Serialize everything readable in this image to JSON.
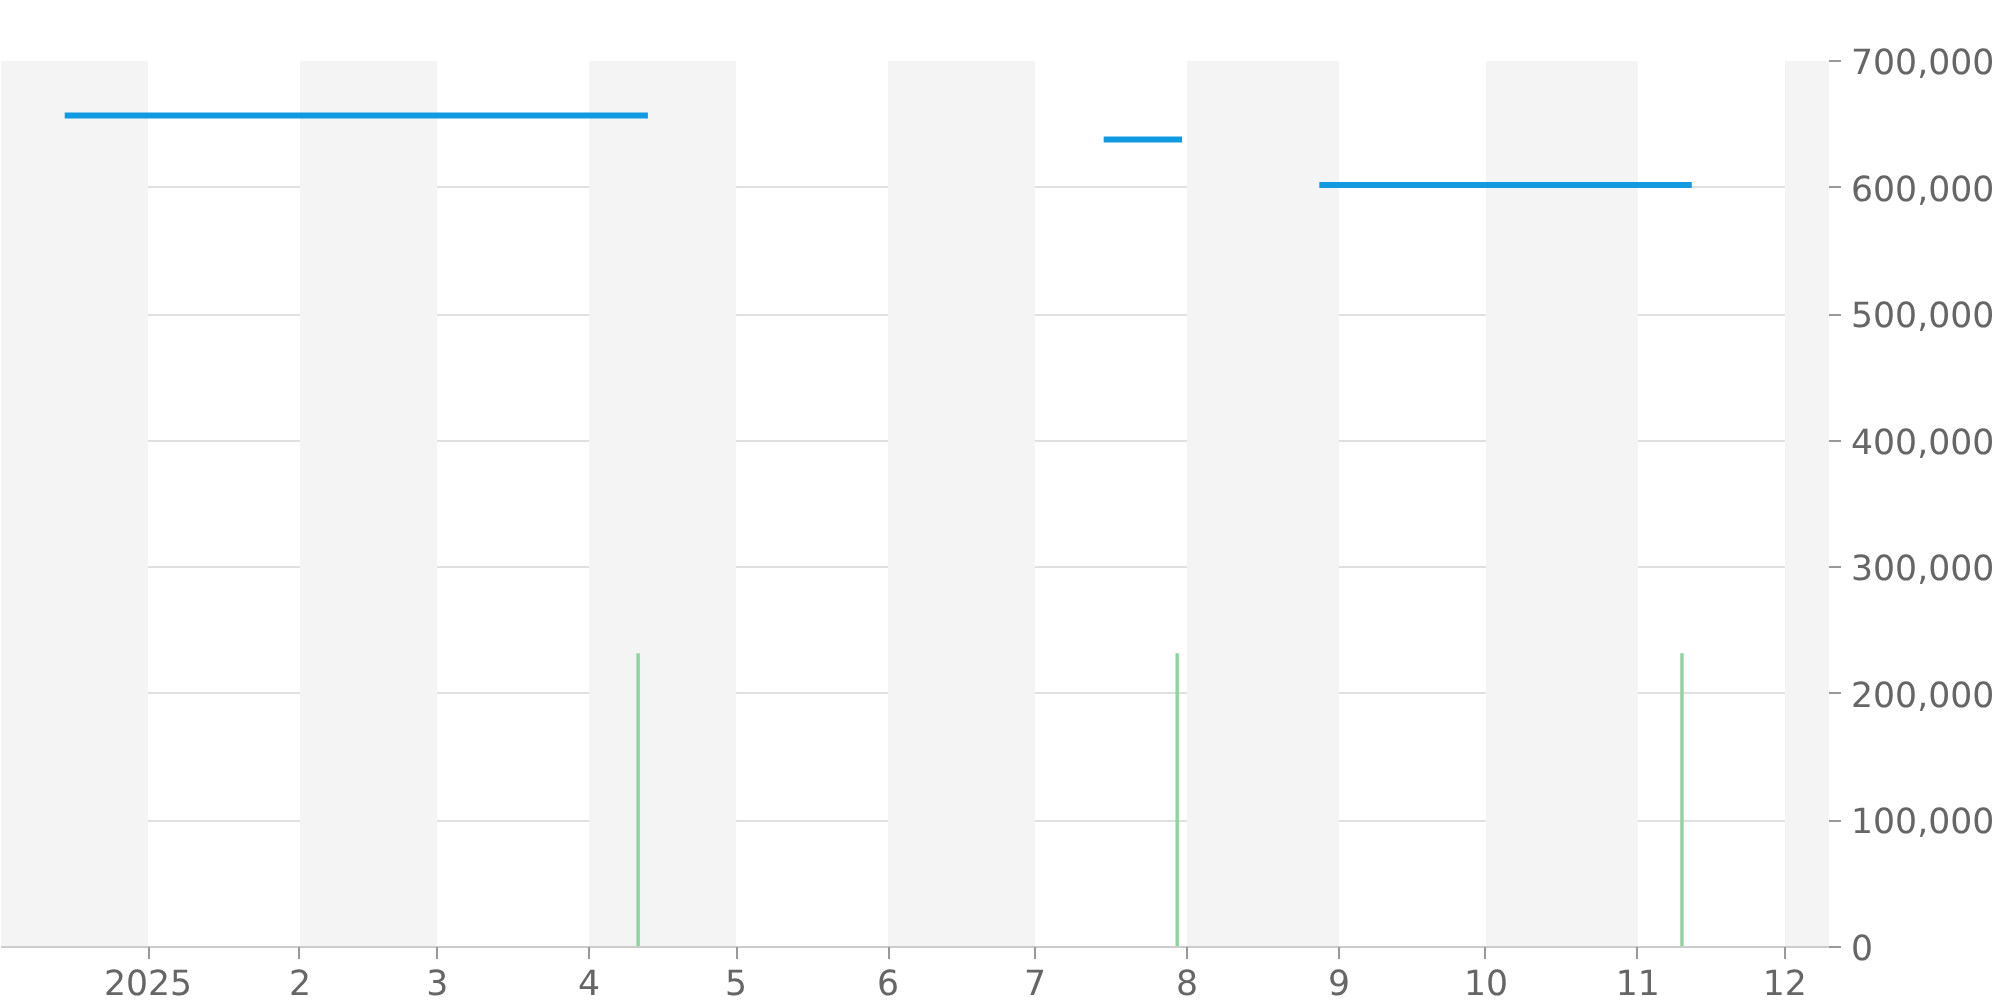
{
  "chart_data": {
    "type": "line",
    "series": [
      {
        "color": "#129ae0",
        "x": [
          "2024-12-15",
          "2025-04-13",
          "2025-05-01",
          "2025-07-15",
          "2025-07-31",
          "2025-08-10",
          "2025-08-28",
          "2025-11-12"
        ],
        "values": [
          657000,
          657000,
          null,
          638000,
          638000,
          null,
          602000,
          602000
        ]
      },
      {
        "type": "bar",
        "color": "#8fd3a0",
        "x": [
          "2025-04-11",
          "2025-07-30",
          "2025-11-10"
        ],
        "values": [
          232000,
          232000,
          232000
        ]
      }
    ],
    "xlim": [
      "2024-12-02",
      "2025-12-10"
    ],
    "xticks": [
      {
        "value": "2025-01",
        "label": "2025"
      },
      {
        "value": "2025-02",
        "label": "2"
      },
      {
        "value": "2025-03",
        "label": "3"
      },
      {
        "value": "2025-04",
        "label": "4"
      },
      {
        "value": "2025-05",
        "label": "5"
      },
      {
        "value": "2025-06",
        "label": "6"
      },
      {
        "value": "2025-07",
        "label": "7"
      },
      {
        "value": "2025-08",
        "label": "8"
      },
      {
        "value": "2025-09",
        "label": "9"
      },
      {
        "value": "2025-10",
        "label": "10"
      },
      {
        "value": "2025-11",
        "label": "11"
      },
      {
        "value": "2025-12",
        "label": "12"
      }
    ],
    "ylim": [
      0,
      700000
    ],
    "yticks": [
      0,
      {
        "value": 100000,
        "label": "100,000"
      },
      {
        "value": 200000,
        "label": "200,000"
      },
      {
        "value": 300000,
        "label": "300,000"
      },
      {
        "value": 400000,
        "label": "400,000"
      },
      {
        "value": 500000,
        "label": "500,000"
      },
      {
        "value": 600000,
        "label": "600,000"
      },
      {
        "value": 700000,
        "label": "700,000"
      }
    ],
    "bands": [
      {
        "axis": "x",
        "from": "2024-12-02",
        "to": "2025-01-01",
        "color": "#f4f4f4"
      },
      {
        "axis": "x",
        "from": "2025-02-01",
        "to": "2025-03-01",
        "color": "#f4f4f4"
      },
      {
        "axis": "x",
        "from": "2025-04-01",
        "to": "2025-05-01",
        "color": "#f4f4f4"
      },
      {
        "axis": "x",
        "from": "2025-06-01",
        "to": "2025-07-01",
        "color": "#f4f4f4"
      },
      {
        "axis": "x",
        "from": "2025-08-01",
        "to": "2025-09-01",
        "color": "#f4f4f4"
      },
      {
        "axis": "x",
        "from": "2025-10-01",
        "to": "2025-11-01",
        "color": "#f4f4f4"
      },
      {
        "axis": "x",
        "from": "2025-12-01",
        "to": "2025-12-10",
        "color": "#f4f4f4"
      }
    ],
    "grid": "y"
  }
}
